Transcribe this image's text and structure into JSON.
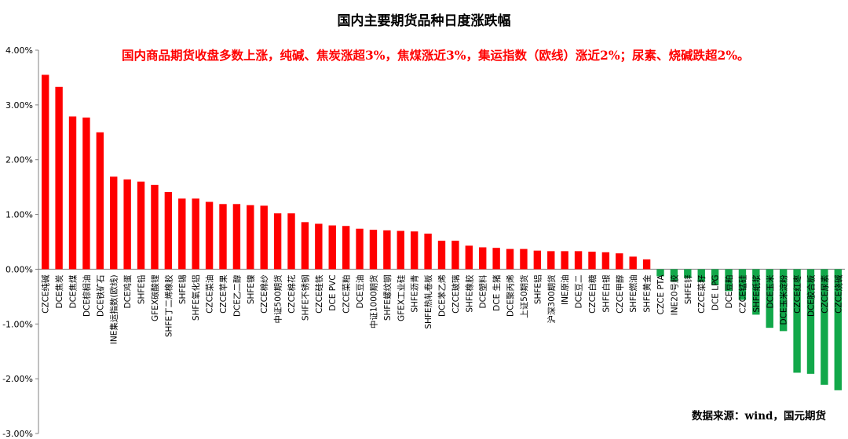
{
  "chart_data": {
    "type": "bar",
    "title": "国内主要期货品种日度涨跌幅",
    "annotation": "国内商品期货收盘多数上涨，纯碱、焦炭涨超3%，焦煤涨近3%，集运指数（欧线）涨近2%；尿素、烧碱跌超2%。",
    "source": "数据来源：wind，国元期货",
    "xlabel": "",
    "ylabel": "",
    "ylim": [
      -3,
      4
    ],
    "y_ticks": [
      "4.00%",
      "3.00%",
      "2.00%",
      "1.00%",
      "0.00%",
      "-1.00%",
      "-2.00%",
      "-3.00%"
    ],
    "positive_color": "#ff0000",
    "negative_color": "#12a84a",
    "grid": false,
    "legend": "none",
    "categories": [
      "CZCE纯碱",
      "DCE焦炭",
      "DCE焦煤",
      "DCE棕榈油",
      "DCE铁矿石",
      "INE集运指数(欧线)",
      "DCE鸡蛋",
      "SHFE铅",
      "GFEX碳酸锂",
      "SHFE丁二烯橡胶",
      "SHFE锡",
      "SHFE氧化铝",
      "CZCE菜油",
      "CZCE苹果",
      "DCE乙二醇",
      "SHFE镍",
      "CZCE棉纱",
      "中证500期货",
      "CZCE棉花",
      "SHFE不锈钢",
      "CZCE硅铁",
      "DCE PVC",
      "CZCE菜粕",
      "DCE豆油",
      "中证1000期货",
      "SHFE螺纹钢",
      "GFEX工业硅",
      "SHFE沥青",
      "SHFE热轧卷板",
      "DCE苯乙烯",
      "CZCE玻璃",
      "SHFE橡胶",
      "DCE塑料",
      "DCE 生猪",
      "DCE聚丙烯",
      "上证50期货",
      "SHFE铝",
      "沪深300期货",
      "INE原油",
      "DCE豆二",
      "CZCE白糖",
      "SHFE白银",
      "CZCE甲醇",
      "SHFE燃油",
      "SHFE黄金",
      "CZCE PTA",
      "INE20号胶",
      "SHFE锌",
      "CZCE菜籽",
      "DCE LPG",
      "DCE豆粕",
      "CZCE锰硅",
      "SHFE纸浆",
      "DCE玉米",
      "DCE玉米淀粉",
      "CZCE红枣",
      "DCE胶合板",
      "CZCE尿素",
      "CZCE烧碱"
    ],
    "values": [
      3.55,
      3.33,
      2.79,
      2.77,
      2.5,
      1.69,
      1.64,
      1.6,
      1.54,
      1.41,
      1.29,
      1.29,
      1.23,
      1.19,
      1.19,
      1.17,
      1.16,
      1.02,
      1.02,
      0.86,
      0.83,
      0.8,
      0.79,
      0.74,
      0.72,
      0.71,
      0.7,
      0.69,
      0.65,
      0.52,
      0.52,
      0.43,
      0.4,
      0.39,
      0.37,
      0.37,
      0.34,
      0.33,
      0.33,
      0.33,
      0.32,
      0.31,
      0.29,
      0.23,
      0.18,
      -0.13,
      -0.22,
      -0.16,
      -0.23,
      -0.29,
      -0.4,
      -0.56,
      -0.83,
      -1.07,
      -1.13,
      -1.89,
      -1.91,
      -2.11,
      -2.21
    ]
  }
}
